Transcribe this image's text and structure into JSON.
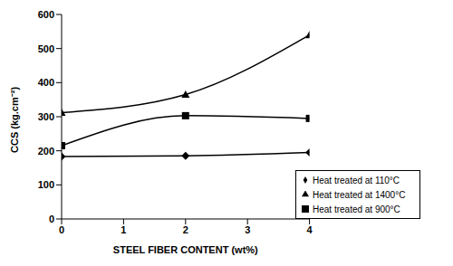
{
  "chart_data": {
    "type": "line",
    "x_label": "STEEL FIBER CONTENT (wt%)",
    "y_label": "CCS (kg.cm⁻²)",
    "x": [
      0,
      2,
      4
    ],
    "series": [
      {
        "name": "Heat treated at 110°C",
        "color": "#000000",
        "marker": "diamond",
        "line_style": "solid",
        "values": [
          183,
          185,
          195
        ]
      },
      {
        "name": "Heat treated at 900°C",
        "color": "#000000",
        "marker": "square",
        "line_style": "solid",
        "values": [
          215,
          303,
          295
        ]
      },
      {
        "name": "Heat treated at 1400°C",
        "color": "#000000",
        "marker": "triangle",
        "line_style": "solid",
        "values": [
          312,
          365,
          540
        ]
      }
    ],
    "xlim": [
      0,
      4
    ],
    "xticks": [
      0,
      1,
      2,
      3,
      4
    ],
    "ylim": [
      0,
      600
    ],
    "yticks": [
      0,
      100,
      200,
      300,
      400,
      500,
      600
    ],
    "grid": false,
    "legend": "lower right"
  }
}
